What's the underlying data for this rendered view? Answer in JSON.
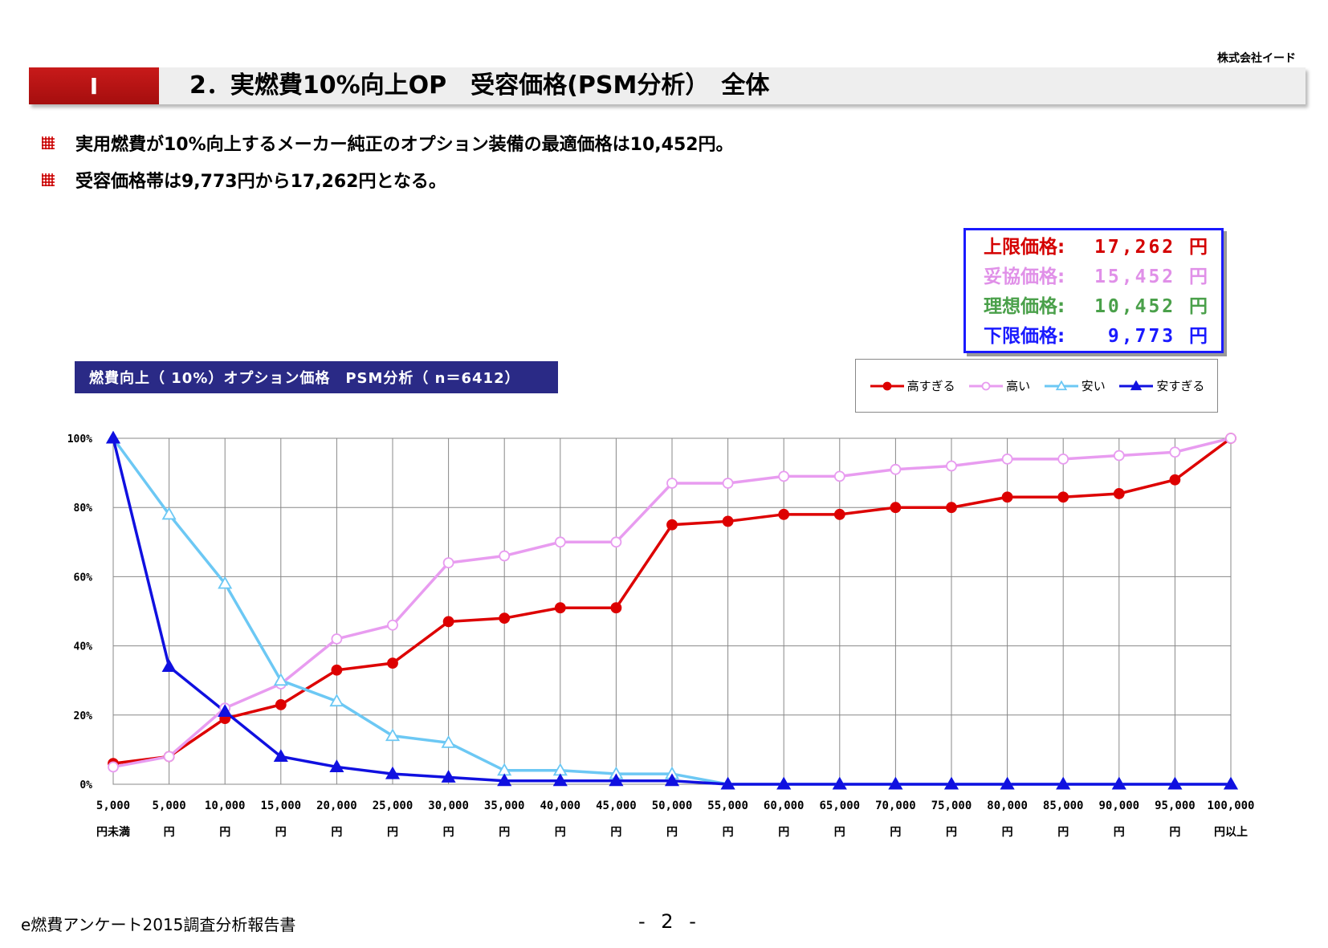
{
  "company": "株式会社イード",
  "header": {
    "section": "I",
    "title": "2．実燃費10%向上OP　受容価格(PSM分析）　全体"
  },
  "bullets": [
    "実用燃費が10%向上するメーカー純正のオプション装備の最適価格は10,452円。",
    "受容価格帯は9,773円から17,262円となる。"
  ],
  "price_box": [
    {
      "label": "上限価格:",
      "value": "17,262 円",
      "color": "#d40000"
    },
    {
      "label": "妥協価格:",
      "value": "15,452 円",
      "color": "#e090e8"
    },
    {
      "label": "理想価格:",
      "value": "10,452 円",
      "color": "#4aa04a"
    },
    {
      "label": "下限価格:",
      "value": "9,773 円",
      "color": "#1a1aff"
    }
  ],
  "footer": {
    "report": "e燃費アンケート2015調査分析報告書",
    "page": "- 2 -"
  },
  "chart_data": {
    "type": "line",
    "title": "燃費向上（ 10%）オプション価格　PSM分析（ n＝6412）",
    "categories": [
      [
        "5,000",
        "円未満"
      ],
      [
        "5,000",
        "円"
      ],
      [
        "10,000",
        "円"
      ],
      [
        "15,000",
        "円"
      ],
      [
        "20,000",
        "円"
      ],
      [
        "25,000",
        "円"
      ],
      [
        "30,000",
        "円"
      ],
      [
        "35,000",
        "円"
      ],
      [
        "40,000",
        "円"
      ],
      [
        "45,000",
        "円"
      ],
      [
        "50,000",
        "円"
      ],
      [
        "55,000",
        "円"
      ],
      [
        "60,000",
        "円"
      ],
      [
        "65,000",
        "円"
      ],
      [
        "70,000",
        "円"
      ],
      [
        "75,000",
        "円"
      ],
      [
        "80,000",
        "円"
      ],
      [
        "85,000",
        "円"
      ],
      [
        "90,000",
        "円"
      ],
      [
        "95,000",
        "円"
      ],
      [
        "100,000",
        "円以上"
      ]
    ],
    "y_ticks": [
      "0%",
      "20%",
      "40%",
      "60%",
      "80%",
      "100%"
    ],
    "ylim": [
      0,
      100
    ],
    "grid": true,
    "legend_position": "top-right",
    "series": [
      {
        "name": "高すぎる",
        "color": "#dd0000",
        "marker": "circle-filled",
        "values": [
          6,
          8,
          19,
          23,
          33,
          35,
          47,
          48,
          51,
          51,
          75,
          76,
          78,
          78,
          80,
          80,
          83,
          83,
          84,
          88,
          100
        ]
      },
      {
        "name": "高い",
        "color": "#e89cf0",
        "marker": "circle-open",
        "values": [
          5,
          8,
          22,
          29,
          42,
          46,
          64,
          66,
          70,
          70,
          87,
          87,
          89,
          89,
          91,
          92,
          94,
          94,
          95,
          96,
          100
        ]
      },
      {
        "name": "安い",
        "color": "#6cc8f4",
        "marker": "triangle-open",
        "values": [
          100,
          78,
          58,
          30,
          24,
          14,
          12,
          4,
          4,
          3,
          3,
          0,
          0,
          0,
          0,
          0,
          0,
          0,
          0,
          0,
          0
        ]
      },
      {
        "name": "安すぎる",
        "color": "#1010e0",
        "marker": "triangle-filled",
        "values": [
          100,
          34,
          21,
          8,
          5,
          3,
          2,
          1,
          1,
          1,
          1,
          0,
          0,
          0,
          0,
          0,
          0,
          0,
          0,
          0,
          0
        ]
      }
    ]
  }
}
